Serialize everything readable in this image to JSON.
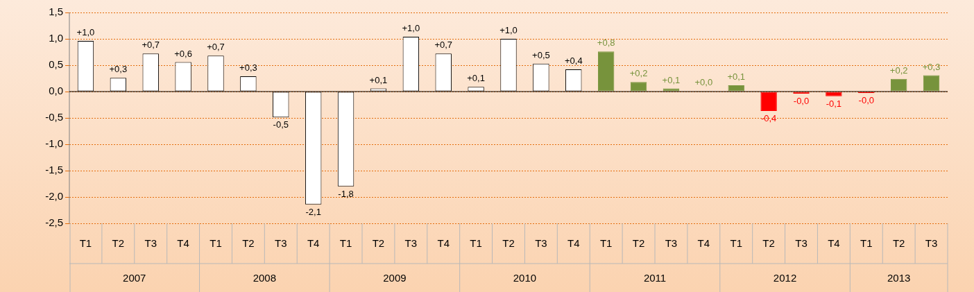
{
  "chart_data": {
    "type": "bar",
    "categories": [
      "T1",
      "T2",
      "T3",
      "T4",
      "T1",
      "T2",
      "T3",
      "T4",
      "T1",
      "T2",
      "T3",
      "T4",
      "T1",
      "T2",
      "T3",
      "T4",
      "T1",
      "T2",
      "T3",
      "T4",
      "T1",
      "T2",
      "T3",
      "T4",
      "T1",
      "T2",
      "T3"
    ],
    "values": [
      0.96,
      0.26,
      0.72,
      0.56,
      0.68,
      0.29,
      -0.49,
      -2.14,
      -1.8,
      0.06,
      1.04,
      0.72,
      0.09,
      1.0,
      0.53,
      0.42,
      0.76,
      0.18,
      0.06,
      0.01,
      0.12,
      -0.37,
      -0.04,
      -0.09,
      -0.03,
      0.24,
      0.31
    ],
    "value_labels": [
      "+1,0",
      "+0,3",
      "+0,7",
      "+0,6",
      "+0,7",
      "+0,3",
      "-0,5",
      "-2,1",
      "-1,8",
      "+0,1",
      "+1,0",
      "+0,7",
      "+0,1",
      "+1,0",
      "+0,5",
      "+0,4",
      "+0,8",
      "+0,2",
      "+0,1",
      "+0,0",
      "+0,1",
      "-0,4",
      "-0,0",
      "-0,1",
      "-0,0",
      "+0,2",
      "+0,3"
    ],
    "colors": [
      "#ffffff",
      "#ffffff",
      "#ffffff",
      "#ffffff",
      "#ffffff",
      "#ffffff",
      "#ffffff",
      "#ffffff",
      "#ffffff",
      "#ffffff",
      "#ffffff",
      "#ffffff",
      "#ffffff",
      "#ffffff",
      "#ffffff",
      "#ffffff",
      "#77933c",
      "#77933c",
      "#77933c",
      "#77933c",
      "#77933c",
      "#ff0000",
      "#ff0000",
      "#ff0000",
      "#ff0000",
      "#77933c",
      "#77933c"
    ],
    "annotations": [
      "2007",
      "2008",
      "2009",
      "2010",
      "2011",
      "2012",
      "2013"
    ],
    "ylim": [
      -2.5,
      1.5
    ],
    "yticks": [
      {
        "value": -2.5,
        "label": "-2,5"
      },
      {
        "value": -2,
        "label": "-2,0"
      },
      {
        "value": -1.5,
        "label": "-1,5"
      },
      {
        "value": -1,
        "label": "-1,0"
      },
      {
        "value": -0.5,
        "label": "-0,5"
      },
      {
        "value": 0,
        "label": "0,0"
      },
      {
        "value": 0.5,
        "label": "0,5"
      },
      {
        "value": 1,
        "label": "1,0"
      },
      {
        "value": 1.5,
        "label": "1,5"
      }
    ],
    "grid": "y"
  }
}
